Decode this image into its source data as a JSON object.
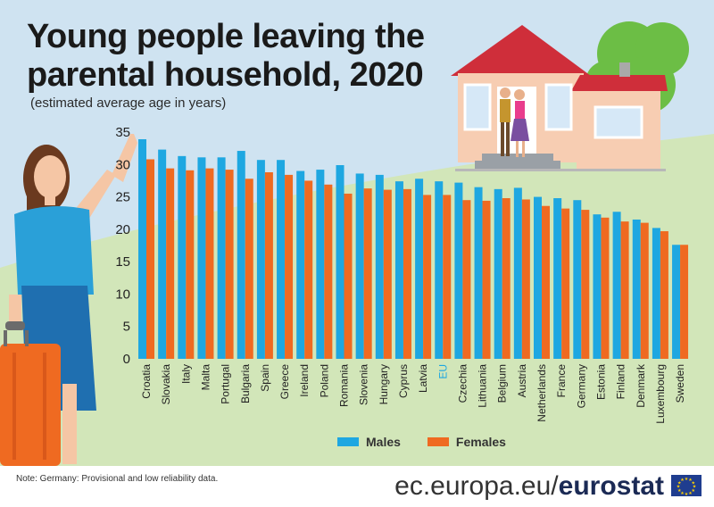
{
  "title_line1": "Young people leaving the",
  "title_line2": "parental household, 2020",
  "subtitle": "(estimated average age in years)",
  "note": "Note: Germany: Provisional and low reliability data.",
  "brand_url": "ec.europa.eu/",
  "brand_name": "eurostat",
  "colors": {
    "males": "#1ea7e1",
    "females": "#ef6a21",
    "eu_label": "#1ea7e1"
  },
  "legend": {
    "males": "Males",
    "females": "Females"
  },
  "chart_data": {
    "type": "bar",
    "title": "Young people leaving the parental household, 2020",
    "subtitle": "(estimated average age in years)",
    "ylim": [
      0,
      35
    ],
    "yticks": [
      0,
      5,
      10,
      15,
      20,
      25,
      30,
      35
    ],
    "grid": false,
    "legend_position": "bottom",
    "categories": [
      "Croatia",
      "Slovakia",
      "Italy",
      "Malta",
      "Portugal",
      "Bulgaria",
      "Spain",
      "Greece",
      "Ireland",
      "Poland",
      "Romania",
      "Slovenia",
      "Hungary",
      "Cyprus",
      "Latvia",
      "EU",
      "Czechia",
      "Lithuania",
      "Belgium",
      "Austria",
      "Netherlands",
      "France",
      "Germany",
      "Estonia",
      "Finland",
      "Denmark",
      "Luxembourg",
      "Sweden"
    ],
    "series": [
      {
        "name": "Males",
        "values": [
          33.9,
          32.3,
          31.3,
          31.1,
          31.1,
          32.1,
          30.7,
          30.7,
          29.0,
          29.2,
          29.9,
          28.6,
          28.4,
          27.4,
          27.8,
          27.4,
          27.2,
          26.5,
          26.2,
          26.4,
          25.0,
          24.8,
          24.5,
          22.3,
          22.7,
          21.5,
          20.2,
          17.6
        ]
      },
      {
        "name": "Females",
        "values": [
          30.8,
          29.4,
          29.1,
          29.4,
          29.2,
          27.8,
          28.8,
          28.4,
          27.5,
          26.9,
          25.5,
          26.3,
          26.1,
          26.2,
          25.3,
          25.3,
          24.5,
          24.4,
          24.8,
          24.6,
          23.6,
          23.2,
          23.0,
          21.8,
          21.2,
          21.0,
          19.7,
          17.6
        ]
      }
    ]
  }
}
